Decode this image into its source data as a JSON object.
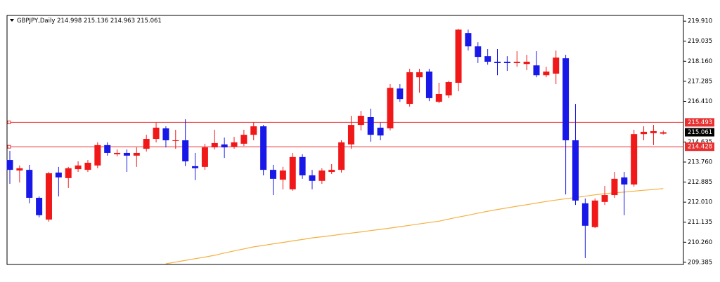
{
  "chart_data": {
    "type": "candlestick",
    "title": "GBPJPY,Daily",
    "up_color": "#f01818",
    "down_color": "#1818e8",
    "open": [
      213.85,
      213.39,
      213.42,
      212.2,
      211.25,
      213.3,
      213.06,
      213.45,
      213.42,
      213.61,
      214.5,
      214.1,
      214.16,
      214.04,
      214.34,
      214.77,
      215.23,
      214.68,
      214.71,
      213.58,
      213.55,
      214.4,
      214.53,
      214.43,
      214.56,
      214.95,
      215.32,
      213.42,
      212.99,
      212.57,
      213.98,
      213.18,
      212.94,
      213.33,
      213.42,
      214.53,
      215.38,
      215.72,
      215.26,
      215.23,
      216.97,
      216.3,
      217.46,
      217.71,
      216.39,
      216.67,
      217.22,
      219.39,
      218.81,
      218.38,
      218.14,
      218.14,
      218.08,
      218.04,
      217.98,
      217.55,
      217.62,
      218.29,
      214.71,
      211.96,
      210.92,
      212.02,
      212.32,
      213.09,
      212.78,
      214.98,
      215.02,
      214.998
    ],
    "high": [
      214.25,
      213.61,
      213.64,
      212.26,
      213.33,
      213.55,
      213.55,
      213.79,
      213.85,
      214.62,
      214.62,
      214.31,
      214.31,
      214.4,
      214.95,
      215.48,
      215.32,
      215.17,
      215.63,
      214.16,
      214.56,
      215.17,
      214.83,
      214.86,
      215.17,
      215.5,
      215.38,
      213.64,
      213.55,
      214.16,
      214.1,
      213.42,
      213.49,
      213.67,
      214.71,
      215.78,
      215.99,
      216.09,
      215.48,
      217.16,
      217.16,
      217.83,
      217.83,
      217.83,
      217.22,
      217.31,
      219.57,
      219.54,
      218.99,
      218.69,
      218.69,
      218.38,
      218.6,
      218.44,
      218.6,
      217.92,
      218.63,
      218.44,
      216.3,
      212.17,
      212.17,
      212.72,
      213.33,
      213.33,
      215.17,
      215.32,
      215.38,
      215.136
    ],
    "low": [
      212.81,
      212.87,
      211.96,
      211.34,
      211.16,
      212.26,
      212.63,
      213.33,
      213.33,
      213.49,
      214.04,
      214.01,
      213.33,
      213.55,
      214.22,
      214.62,
      214.4,
      214.34,
      213.58,
      212.97,
      213.42,
      214.31,
      213.94,
      214.34,
      214.46,
      214.71,
      213.18,
      212.32,
      212.57,
      212.51,
      213.03,
      212.57,
      212.81,
      213.24,
      213.3,
      214.34,
      215.14,
      214.65,
      214.71,
      215.14,
      216.39,
      216.18,
      216.79,
      216.42,
      216.33,
      216.55,
      216.85,
      218.63,
      218.08,
      218.01,
      217.55,
      217.74,
      217.92,
      217.77,
      217.46,
      217.46,
      217.16,
      212.35,
      211.89,
      209.57,
      210.88,
      211.89,
      212.2,
      211.44,
      212.69,
      214.71,
      214.5,
      214.963
    ],
    "close": [
      213.42,
      213.49,
      212.2,
      211.44,
      213.27,
      213.09,
      213.49,
      213.61,
      213.73,
      214.5,
      214.16,
      214.16,
      214.04,
      214.16,
      214.77,
      215.26,
      214.71,
      214.71,
      213.79,
      213.49,
      214.4,
      214.59,
      214.4,
      214.62,
      214.95,
      215.32,
      213.42,
      213.03,
      213.39,
      213.98,
      213.18,
      212.94,
      213.39,
      213.42,
      214.62,
      215.38,
      215.78,
      214.95,
      214.92,
      217.0,
      216.51,
      217.68,
      217.68,
      216.55,
      216.73,
      217.25,
      219.54,
      218.81,
      218.35,
      218.14,
      218.08,
      218.08,
      218.14,
      218.14,
      217.55,
      217.71,
      218.32,
      214.71,
      212.08,
      210.98,
      212.08,
      212.32,
      213.03,
      212.78,
      214.98,
      215.08,
      215.11,
      215.061
    ],
    "ma": {
      "color": "#f4b040",
      "values": [
        null,
        null,
        null,
        null,
        null,
        null,
        null,
        null,
        null,
        null,
        null,
        null,
        null,
        null,
        null,
        null,
        209.32,
        209.39,
        209.47,
        209.54,
        209.61,
        209.69,
        209.79,
        209.88,
        209.97,
        210.06,
        210.12,
        210.19,
        210.25,
        210.32,
        210.38,
        210.45,
        210.5,
        210.55,
        210.61,
        210.66,
        210.71,
        210.77,
        210.82,
        210.88,
        210.94,
        211.0,
        211.06,
        211.12,
        211.18,
        211.27,
        211.36,
        211.44,
        211.53,
        211.61,
        211.69,
        211.76,
        211.83,
        211.9,
        211.97,
        212.04,
        212.1,
        212.16,
        212.21,
        212.27,
        212.33,
        212.38,
        212.42,
        212.45,
        212.49,
        212.53,
        212.56,
        212.6
      ]
    },
    "levels": {
      "color": "#e83030",
      "values": [
        215.493,
        214.428
      ]
    },
    "ylim": [
      209.29,
      220.16
    ],
    "yticks": [
      209.385,
      {
        "value": 210.26,
        "label": "210.260"
      },
      211.135,
      {
        "value": 212.01,
        "label": "212.010"
      },
      212.885,
      {
        "value": 213.76,
        "label": "213.760"
      },
      214.635,
      {
        "value": 216.41,
        "label": "216.410"
      },
      217.285,
      {
        "value": 218.16,
        "label": "218.160"
      },
      219.035,
      {
        "value": 219.91,
        "label": "219.910"
      }
    ]
  }
}
